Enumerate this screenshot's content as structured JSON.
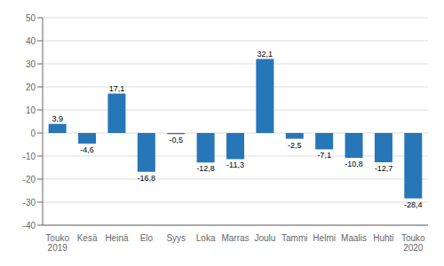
{
  "chart_data": {
    "type": "bar",
    "categories": [
      "Touko\n2019",
      "Kesä",
      "Heinä",
      "Elo",
      "Syys",
      "Loka",
      "Marras",
      "Joulu",
      "Tammi",
      "Helmi",
      "Maalis",
      "Huhti",
      "Touko\n2020"
    ],
    "values": [
      3.9,
      -4.6,
      17.1,
      -16.8,
      -0.5,
      -12.8,
      -11.3,
      32.1,
      -2.5,
      -7.1,
      -10.8,
      -12.7,
      -28.4
    ],
    "value_labels": [
      "3,9",
      "-4,6",
      "17,1",
      "-16,8",
      "-0,5",
      "-12,8",
      "-11,3",
      "32,1",
      "-2,5",
      "-7,1",
      "-10,8",
      "-12,7",
      "-28,4"
    ],
    "color": "#2676B8",
    "ylim": [
      -40,
      50
    ],
    "yticks": [
      -40,
      -30,
      -20,
      -10,
      0,
      10,
      20,
      30,
      40,
      50
    ],
    "grid": true,
    "data_labels": true
  }
}
